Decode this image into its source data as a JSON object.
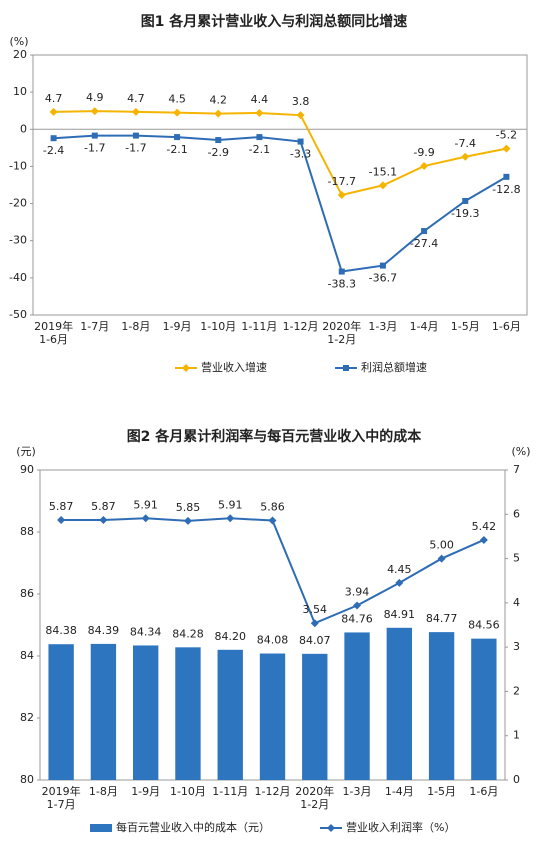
{
  "chart_data": [
    {
      "type": "line",
      "title": "图1  各月累计营业收入与利润总额同比增速",
      "y_label": "(%)",
      "categories": [
        "2019年\n1-6月",
        "1-7月",
        "1-8月",
        "1-9月",
        "1-10月",
        "1-11月",
        "1-12月",
        "2020年\n1-2月",
        "1-3月",
        "1-4月",
        "1-5月",
        "1-6月"
      ],
      "ylim": [
        -50,
        20
      ],
      "yticks": [
        -50,
        -40,
        -30,
        -20,
        -10,
        0,
        10,
        20
      ],
      "grid": false,
      "legend": "bottom",
      "series": [
        {
          "name": "营业收入增速",
          "color": "#f5b400",
          "marker": "diamond",
          "label_position": "above",
          "values": [
            4.7,
            4.9,
            4.7,
            4.5,
            4.2,
            4.4,
            3.8,
            -17.7,
            -15.1,
            -9.9,
            -7.4,
            -5.2
          ]
        },
        {
          "name": "利润总额增速",
          "color": "#2e6db5",
          "marker": "square",
          "label_position": "below",
          "values": [
            -2.4,
            -1.7,
            -1.7,
            -2.1,
            -2.9,
            -2.1,
            -3.3,
            -38.3,
            -36.7,
            -27.4,
            -19.3,
            -12.8
          ]
        }
      ]
    },
    {
      "type": "bar",
      "title": "图2  各月累计利润率与每百元营业收入中的成本",
      "y_label": "(元)",
      "y2_label": "(%)",
      "categories": [
        "2019年\n1-7月",
        "1-8月",
        "1-9月",
        "1-10月",
        "1-11月",
        "1-12月",
        "2020年\n1-2月",
        "1-3月",
        "1-4月",
        "1-5月",
        "1-6月"
      ],
      "ylim": [
        80,
        90
      ],
      "yticks": [
        80,
        82,
        84,
        86,
        88,
        90
      ],
      "y2lim": [
        0,
        7
      ],
      "y2ticks": [
        0,
        1,
        2,
        3,
        4,
        5,
        6,
        7
      ],
      "grid": false,
      "legend": "bottom",
      "series": [
        {
          "name": "每百元营业收入中的成本（元）",
          "color": "#2e75c0",
          "type": "bar",
          "label_position": "above",
          "values": [
            84.38,
            84.39,
            84.34,
            84.28,
            84.2,
            84.08,
            84.07,
            84.76,
            84.91,
            84.77,
            84.56
          ],
          "value_labels": [
            "84.38",
            "84.39",
            "84.34",
            "84.28",
            "84.20",
            "84.08",
            "84.07",
            "84.76",
            "84.91",
            "84.77",
            "84.56"
          ]
        },
        {
          "name": "营业收入利润率（%）",
          "color": "#2e6db5",
          "type": "line",
          "axis": "y2",
          "marker": "diamond",
          "label_position": "above",
          "values": [
            5.87,
            5.87,
            5.91,
            5.85,
            5.91,
            5.86,
            3.54,
            3.94,
            4.45,
            5.0,
            5.42
          ],
          "value_labels": [
            "5.87",
            "5.87",
            "5.91",
            "5.85",
            "5.91",
            "5.86",
            "3.54",
            "3.94",
            "4.45",
            "5.00",
            "5.42"
          ]
        }
      ]
    }
  ]
}
